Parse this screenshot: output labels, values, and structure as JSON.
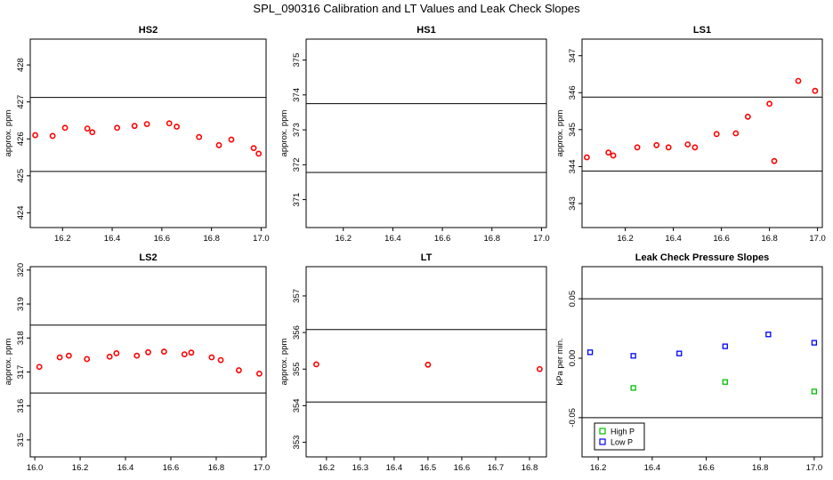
{
  "title": "SPL_090316  Calibration and LT Values and Leak Check Slopes",
  "colors": {
    "point": "#ff0000",
    "highP": "#00c000",
    "lowP": "#0000ff",
    "line": "#000000"
  },
  "chart_data": [
    {
      "id": "hs2",
      "type": "scatter",
      "title": "HS2",
      "ylabel": "approx. ppm",
      "xlim": [
        16.07,
        17.02
      ],
      "ylim": [
        423.6,
        428.7
      ],
      "xticks": [
        16.2,
        16.4,
        16.6,
        16.8,
        17.0
      ],
      "xtick_labels": [
        "16.2",
        "16.4",
        "16.6",
        "16.8",
        "17.0"
      ],
      "yticks": [
        424,
        425,
        426,
        427,
        428
      ],
      "ytick_labels": [
        "424",
        "425",
        "426",
        "427",
        "428"
      ],
      "hlines": [
        427.12,
        425.12
      ],
      "series": [
        {
          "color": "#ff0000",
          "x": [
            16.09,
            16.16,
            16.21,
            16.3,
            16.32,
            16.42,
            16.49,
            16.54,
            16.63,
            16.66,
            16.75,
            16.83,
            16.88,
            16.97,
            16.99
          ],
          "y": [
            426.1,
            426.08,
            426.3,
            426.28,
            426.18,
            426.3,
            426.35,
            426.4,
            426.42,
            426.33,
            426.05,
            425.83,
            425.98,
            425.75,
            425.6
          ]
        }
      ]
    },
    {
      "id": "hs1",
      "type": "scatter",
      "title": "HS1",
      "ylabel": "approx. ppm",
      "xlim": [
        16.05,
        17.02
      ],
      "ylim": [
        370.2,
        375.6
      ],
      "xticks": [
        16.2,
        16.4,
        16.6,
        16.8,
        17.0
      ],
      "xtick_labels": [
        "16.2",
        "16.4",
        "16.6",
        "16.8",
        "17.0"
      ],
      "yticks": [
        371,
        372,
        373,
        374,
        375
      ],
      "ytick_labels": [
        "371",
        "372",
        "373",
        "374",
        "375"
      ],
      "hlines": [
        373.75,
        371.78
      ],
      "series": []
    },
    {
      "id": "ls1",
      "type": "scatter",
      "title": "LS1",
      "ylabel": "approx. ppm",
      "xlim": [
        16.02,
        17.02
      ],
      "ylim": [
        342.35,
        347.45
      ],
      "xticks": [
        16.2,
        16.4,
        16.6,
        16.8,
        17.0
      ],
      "xtick_labels": [
        "16.2",
        "16.4",
        "16.6",
        "16.8",
        "17.0"
      ],
      "yticks": [
        343,
        344,
        345,
        346,
        347
      ],
      "ytick_labels": [
        "343",
        "344",
        "345",
        "346",
        "347"
      ],
      "hlines": [
        345.88,
        343.88
      ],
      "series": [
        {
          "color": "#ff0000",
          "x": [
            16.04,
            16.13,
            16.15,
            16.25,
            16.33,
            16.38,
            16.46,
            16.49,
            16.58,
            16.66,
            16.71,
            16.8,
            16.82,
            16.92,
            16.99
          ],
          "y": [
            344.25,
            344.38,
            344.3,
            344.52,
            344.58,
            344.52,
            344.6,
            344.52,
            344.88,
            344.9,
            345.35,
            345.7,
            344.15,
            346.32,
            346.05
          ]
        }
      ]
    },
    {
      "id": "ls2",
      "type": "scatter",
      "title": "LS2",
      "ylabel": "approx. ppm",
      "xlim": [
        15.98,
        17.02
      ],
      "ylim": [
        314.5,
        320.1
      ],
      "xticks": [
        16.0,
        16.2,
        16.4,
        16.6,
        16.8,
        17.0
      ],
      "xtick_labels": [
        "16.0",
        "16.2",
        "16.4",
        "16.6",
        "16.8",
        "17.0"
      ],
      "yticks": [
        315,
        316,
        317,
        318,
        319,
        320
      ],
      "ytick_labels": [
        "315",
        "316",
        "317",
        "318",
        "319",
        "320"
      ],
      "hlines": [
        318.38,
        316.38
      ],
      "series": [
        {
          "color": "#ff0000",
          "x": [
            16.02,
            16.11,
            16.15,
            16.23,
            16.33,
            16.36,
            16.45,
            16.5,
            16.57,
            16.66,
            16.69,
            16.78,
            16.82,
            16.9,
            16.99
          ],
          "y": [
            317.15,
            317.43,
            317.48,
            317.38,
            317.45,
            317.55,
            317.48,
            317.58,
            317.6,
            317.52,
            317.57,
            317.43,
            317.35,
            317.05,
            316.95
          ]
        }
      ]
    },
    {
      "id": "lt",
      "type": "scatter",
      "title": "LT",
      "ylabel": "approx. ppm",
      "xlim": [
        16.14,
        16.85
      ],
      "ylim": [
        352.6,
        357.8
      ],
      "xticks": [
        16.2,
        16.3,
        16.4,
        16.5,
        16.6,
        16.7,
        16.8
      ],
      "xtick_labels": [
        "16.2",
        "16.3",
        "16.4",
        "16.5",
        "16.6",
        "16.7",
        "16.8"
      ],
      "yticks": [
        353,
        354,
        355,
        356,
        357
      ],
      "ytick_labels": [
        "353",
        "354",
        "355",
        "356",
        "357"
      ],
      "hlines": [
        356.08,
        354.1
      ],
      "series": [
        {
          "color": "#ff0000",
          "x": [
            16.17,
            16.5,
            16.83
          ],
          "y": [
            355.13,
            355.12,
            355.0
          ]
        }
      ]
    },
    {
      "id": "leak",
      "type": "scatter",
      "title": "Leak Check Pressure Slopes",
      "ylabel": "kPa per min.",
      "xlim": [
        16.14,
        17.03
      ],
      "ylim": [
        -0.083,
        0.077
      ],
      "xticks": [
        16.2,
        16.4,
        16.6,
        16.8,
        17.0
      ],
      "xtick_labels": [
        "16.2",
        "16.4",
        "16.6",
        "16.8",
        "17.0"
      ],
      "yticks": [
        -0.05,
        0.0,
        0.05
      ],
      "ytick_labels": [
        "-0.05",
        "0.00",
        "0.05"
      ],
      "hlines": [
        0.05,
        -0.05
      ],
      "series": [
        {
          "name": "High P",
          "color": "#00c000",
          "x": [
            16.33,
            16.67,
            17.0
          ],
          "y": [
            -0.025,
            -0.02,
            -0.028
          ]
        },
        {
          "name": "Low P",
          "color": "#0000ff",
          "x": [
            16.17,
            16.33,
            16.5,
            16.67,
            16.83,
            17.0
          ],
          "y": [
            0.005,
            0.002,
            0.004,
            0.01,
            0.02,
            0.013
          ]
        }
      ],
      "legend": "bottom-left"
    }
  ]
}
